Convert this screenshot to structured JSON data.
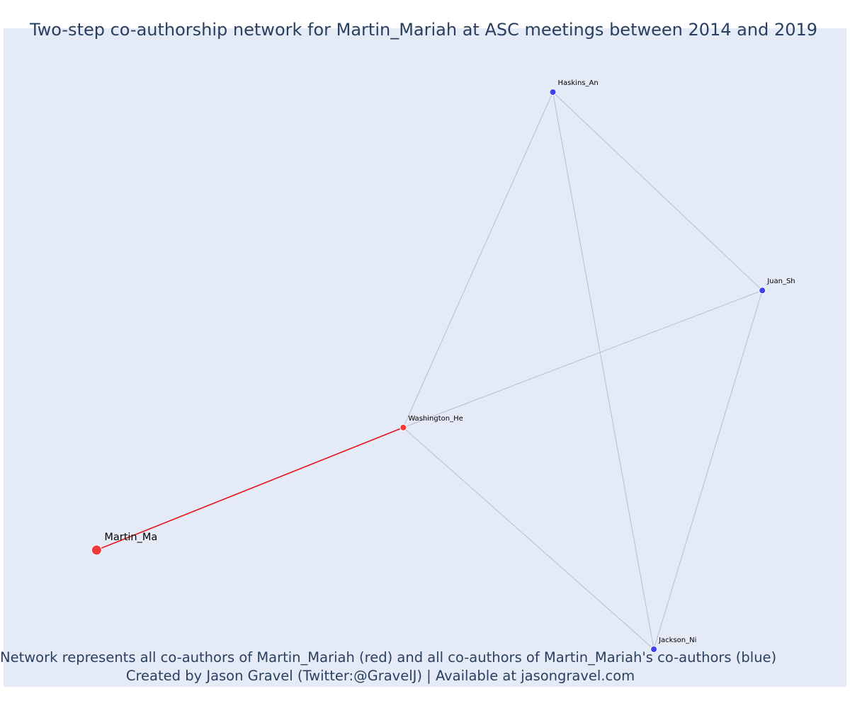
{
  "chart_data": {
    "type": "network",
    "title": "Two-step co-authorship network for Martin_Mariah at ASC meetings between 2014 and 2019",
    "captions": [
      "Network represents all co-authors of Martin_Mariah (red) and all co-authors of Martin_Mariah's co-authors (blue)",
      "Created by Jason Gravel (Twitter:@GravelJ) | Available at jasongravel.com"
    ],
    "xlim": [
      0,
      1
    ],
    "ylim": [
      0,
      1
    ],
    "colors": {
      "background": "#e5ebf6",
      "ego": "#ef3b3b",
      "first_degree": "#ef3b3b",
      "second_degree": "#3f3ff0",
      "ego_edge": "#e8141c",
      "other_edge": "#b9bccd",
      "node_outline": "#ffffff"
    },
    "nodes": [
      {
        "id": "Martin_Ma",
        "label": "Martin_Ma",
        "group": "ego",
        "x": 0.06,
        "y": 0.17
      },
      {
        "id": "Washington_He",
        "label": "Washington_He",
        "group": "first_degree",
        "x": 0.47,
        "y": 0.38
      },
      {
        "id": "Haskins_An",
        "label": "Haskins_An",
        "group": "second_degree",
        "x": 0.67,
        "y": 0.955
      },
      {
        "id": "Juan_Sh",
        "label": "Juan_Sh",
        "group": "second_degree",
        "x": 0.95,
        "y": 0.615
      },
      {
        "id": "Jackson_Ni",
        "label": "Jackson_Ni",
        "group": "second_degree",
        "x": 0.805,
        "y": 0.0
      }
    ],
    "edges": [
      {
        "source": "Martin_Ma",
        "target": "Washington_He",
        "type": "ego"
      },
      {
        "source": "Washington_He",
        "target": "Haskins_An",
        "type": "other"
      },
      {
        "source": "Washington_He",
        "target": "Juan_Sh",
        "type": "other"
      },
      {
        "source": "Washington_He",
        "target": "Jackson_Ni",
        "type": "other"
      },
      {
        "source": "Haskins_An",
        "target": "Juan_Sh",
        "type": "other"
      },
      {
        "source": "Haskins_An",
        "target": "Jackson_Ni",
        "type": "other"
      },
      {
        "source": "Juan_Sh",
        "target": "Jackson_Ni",
        "type": "other"
      }
    ]
  }
}
